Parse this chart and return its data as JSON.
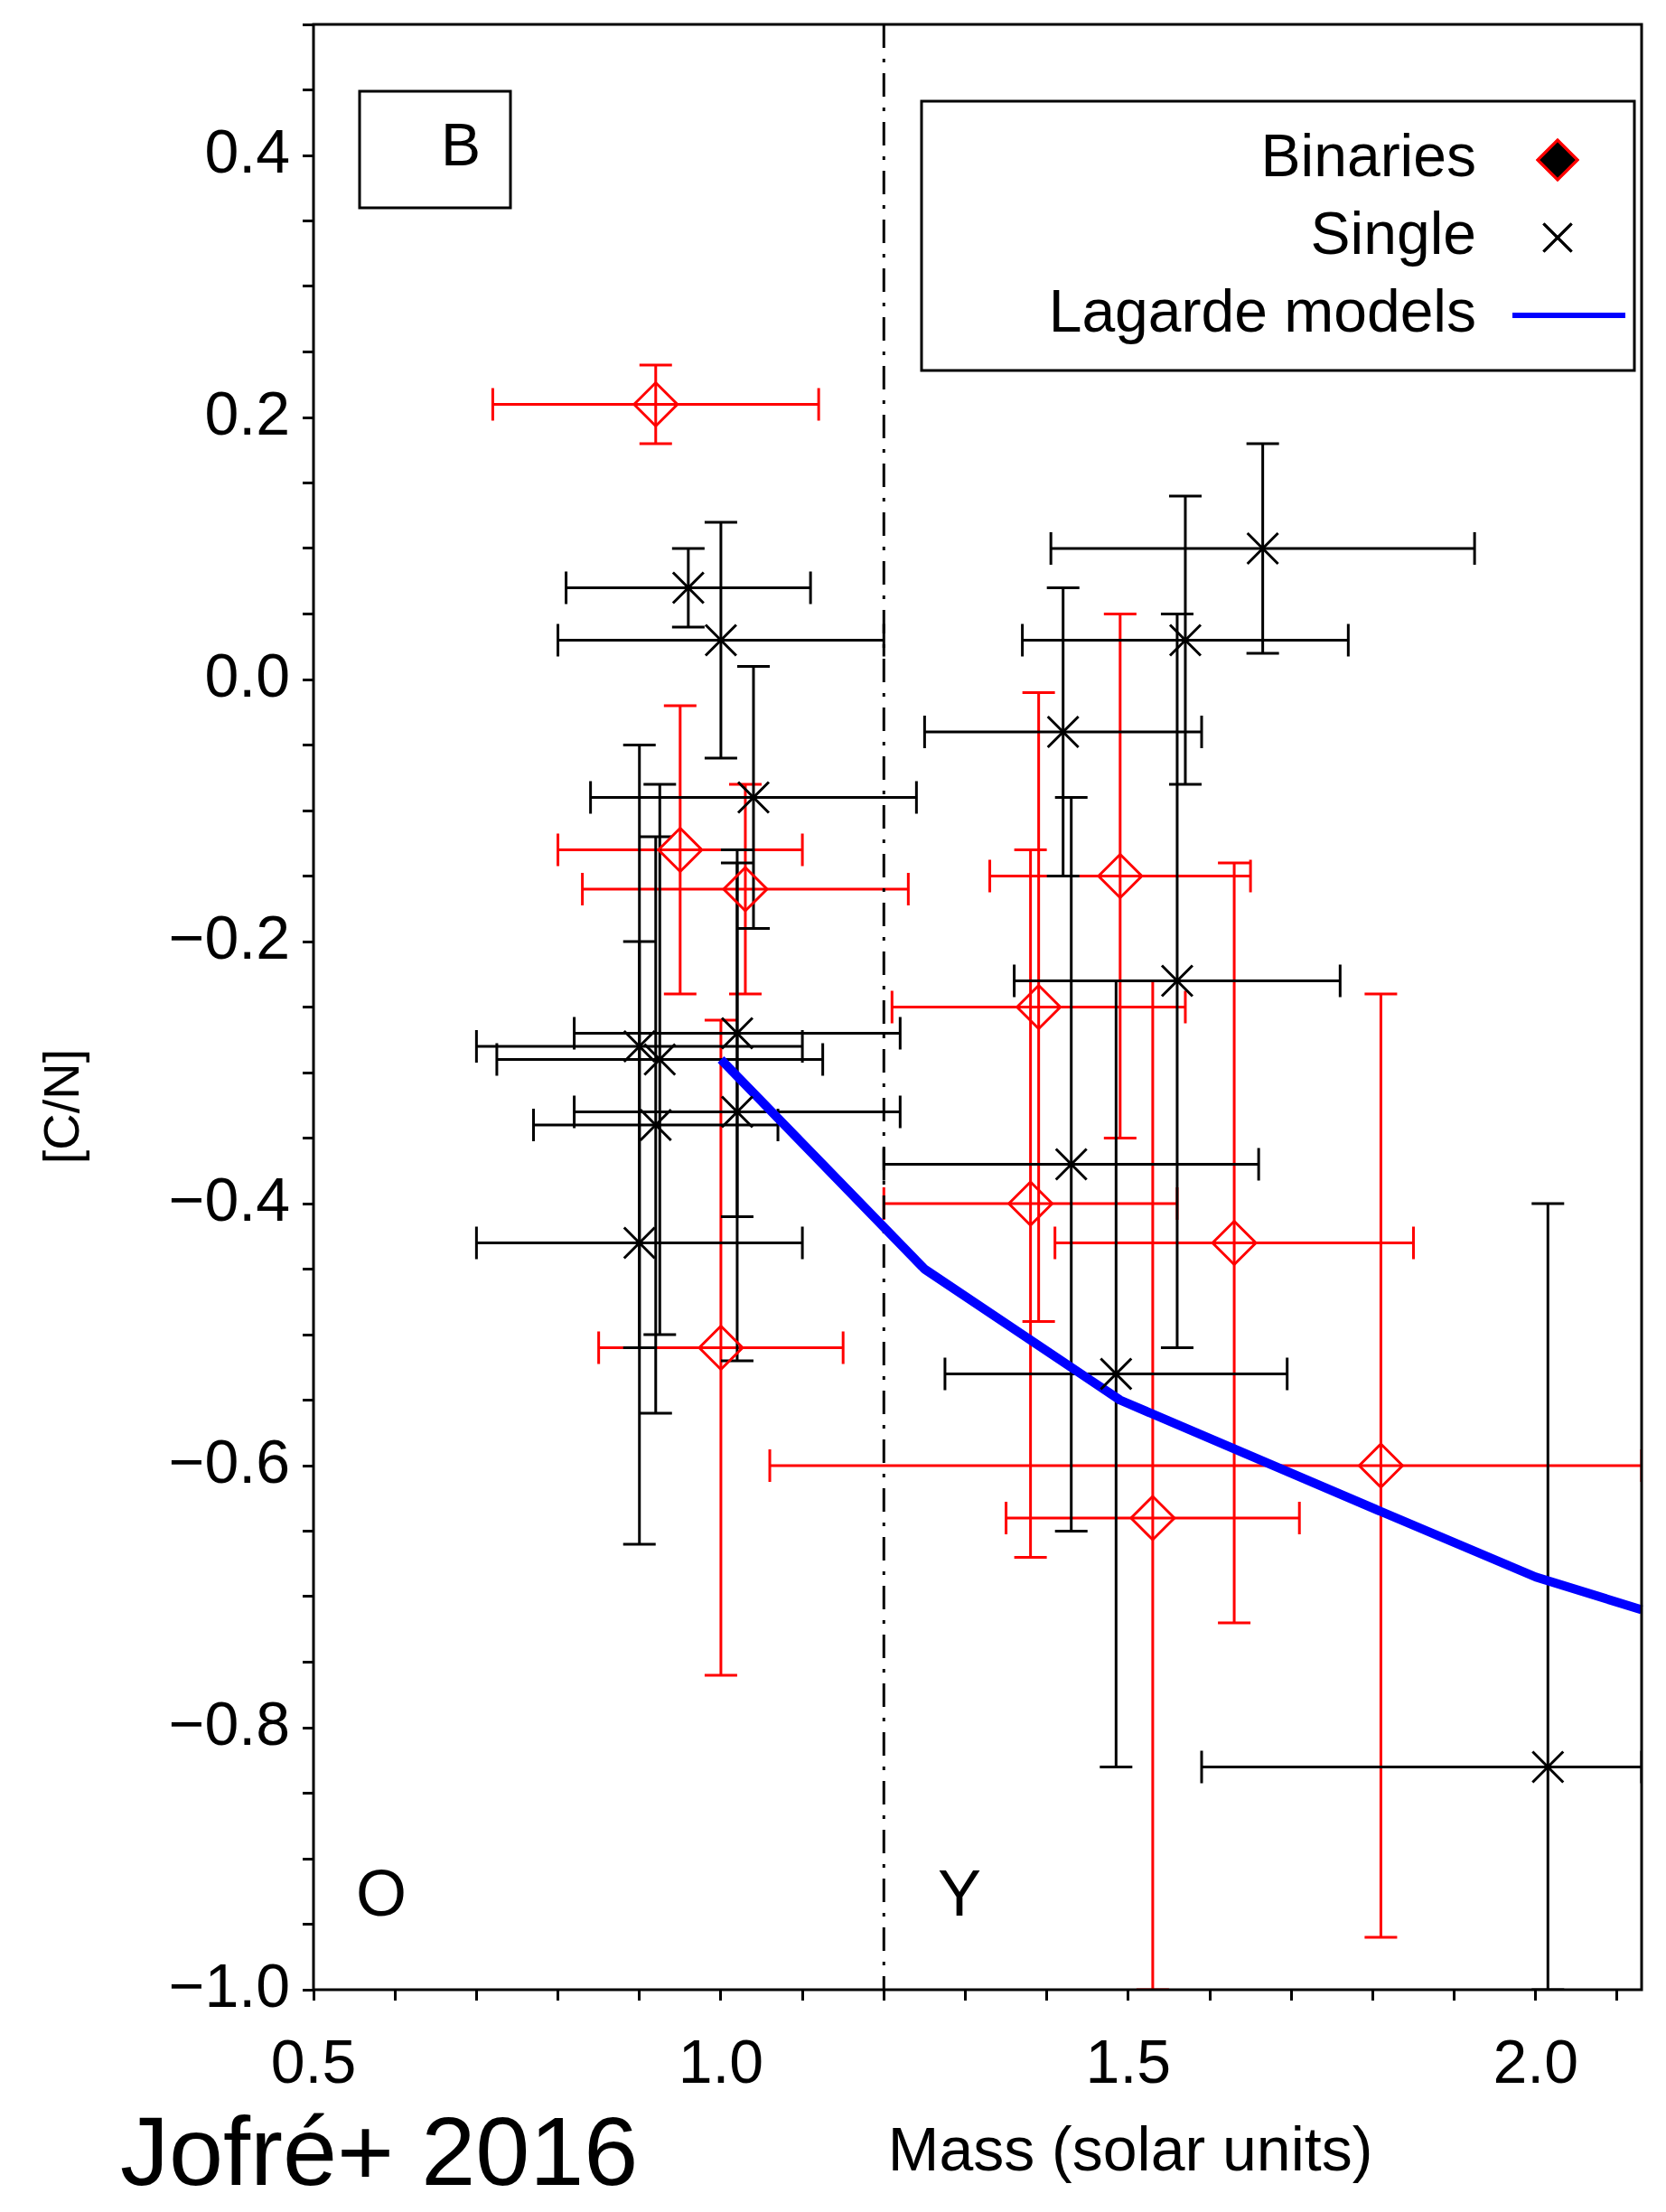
{
  "chart_data": {
    "type": "scatter",
    "xlabel": "Mass (solar units)",
    "ylabel": "[C/N]",
    "legend": "top right",
    "xlim": [
      0.5,
      2.13
    ],
    "ylim": [
      -1.0,
      0.5
    ],
    "xticks": [
      {
        "value": 0.5,
        "label": "0.5"
      },
      {
        "value": 0.6,
        "label": null
      },
      {
        "value": 0.7,
        "label": null
      },
      {
        "value": 0.8,
        "label": null
      },
      {
        "value": 0.9,
        "label": null
      },
      {
        "value": 1.0,
        "label": "1.0"
      },
      {
        "value": 1.1,
        "label": null
      },
      {
        "value": 1.2,
        "label": null
      },
      {
        "value": 1.3,
        "label": null
      },
      {
        "value": 1.4,
        "label": null
      },
      {
        "value": 1.5,
        "label": "1.5"
      },
      {
        "value": 1.6,
        "label": null
      },
      {
        "value": 1.7,
        "label": null
      },
      {
        "value": 1.8,
        "label": null
      },
      {
        "value": 1.9,
        "label": null
      },
      {
        "value": 2.0,
        "label": "2.0"
      },
      {
        "value": 2.1,
        "label": null
      }
    ],
    "yticks": [
      {
        "value": -1.0,
        "label": "−1.0"
      },
      {
        "value": -0.95,
        "label": null
      },
      {
        "value": -0.9,
        "label": null
      },
      {
        "value": -0.85,
        "label": null
      },
      {
        "value": -0.8,
        "label": "−0.8"
      },
      {
        "value": -0.75,
        "label": null
      },
      {
        "value": -0.7,
        "label": null
      },
      {
        "value": -0.65,
        "label": null
      },
      {
        "value": -0.6,
        "label": "−0.6"
      },
      {
        "value": -0.55,
        "label": null
      },
      {
        "value": -0.5,
        "label": null
      },
      {
        "value": -0.45,
        "label": null
      },
      {
        "value": -0.4,
        "label": "−0.4"
      },
      {
        "value": -0.35,
        "label": null
      },
      {
        "value": -0.3,
        "label": null
      },
      {
        "value": -0.25,
        "label": null
      },
      {
        "value": -0.2,
        "label": "−0.2"
      },
      {
        "value": -0.15,
        "label": null
      },
      {
        "value": -0.1,
        "label": null
      },
      {
        "value": -0.05,
        "label": null
      },
      {
        "value": 0.0,
        "label": "0.0"
      },
      {
        "value": 0.05,
        "label": null
      },
      {
        "value": 0.1,
        "label": null
      },
      {
        "value": 0.15,
        "label": null
      },
      {
        "value": 0.2,
        "label": "0.2"
      },
      {
        "value": 0.25,
        "label": null
      },
      {
        "value": 0.3,
        "label": null
      },
      {
        "value": 0.35,
        "label": null
      },
      {
        "value": 0.4,
        "label": "0.4"
      },
      {
        "value": 0.45,
        "label": null
      },
      {
        "value": 0.5,
        "label": null
      }
    ],
    "ref_lines": [
      {
        "axis": "x",
        "value": 1.2,
        "color": "#000000",
        "line_style": "dashdot"
      }
    ],
    "annotations": [
      "B",
      "O",
      "Y",
      "Jofré+ 2016"
    ],
    "series": [
      {
        "name": "Binaries",
        "marker": "diamond",
        "color": "#ff0000",
        "x": [
          0.92,
          0.95,
          1.03,
          1.0,
          1.39,
          1.38,
          1.49,
          1.53,
          1.63,
          1.81
        ],
        "values": [
          0.21,
          -0.13,
          -0.16,
          -0.51,
          -0.25,
          -0.4,
          -0.15,
          -0.64,
          -0.43,
          -0.6
        ],
        "errors": [
          0.03,
          0.11,
          0.08,
          0.25,
          0.24,
          0.27,
          0.2,
          [
            -1.0,
            -0.23
          ],
          0.29,
          0.36
        ],
        "xerrors": [
          0.2,
          0.15,
          0.2,
          0.15,
          0.18,
          0.18,
          0.16,
          0.18,
          0.22,
          [
            1.06,
            2.13
          ]
        ]
      },
      {
        "name": "Single",
        "marker": "cross",
        "color": "#000000",
        "x": [
          0.96,
          1.0,
          1.04,
          0.9,
          0.925,
          0.92,
          0.9,
          1.02,
          1.02,
          1.42,
          1.43,
          1.57,
          1.665,
          1.56,
          1.485,
          2.015
        ],
        "values": [
          0.07,
          0.03,
          -0.09,
          -0.28,
          -0.29,
          -0.34,
          -0.43,
          -0.27,
          -0.33,
          -0.04,
          -0.37,
          0.03,
          0.1,
          -0.23,
          -0.53,
          -0.83
        ],
        "errors": [
          0.03,
          0.09,
          0.1,
          0.23,
          0.21,
          0.22,
          0.23,
          0.14,
          0.19,
          0.11,
          0.28,
          0.11,
          0.08,
          0.28,
          0.3,
          [
            -1.0,
            -0.4
          ]
        ],
        "xerrors": [
          0.15,
          0.2,
          0.2,
          0.2,
          0.2,
          0.15,
          0.2,
          0.2,
          0.2,
          0.17,
          0.23,
          0.2,
          0.26,
          0.2,
          0.21,
          [
            1.59,
            2.13
          ]
        ]
      },
      {
        "name": "Lagarde models",
        "type": "line",
        "marker": "none",
        "color": "#0000ff",
        "x": [
          1.0,
          1.25,
          1.49,
          1.81,
          2.0,
          2.13
        ],
        "values": [
          -0.29,
          -0.45,
          -0.55,
          -0.635,
          -0.685,
          -0.71
        ]
      }
    ]
  }
}
